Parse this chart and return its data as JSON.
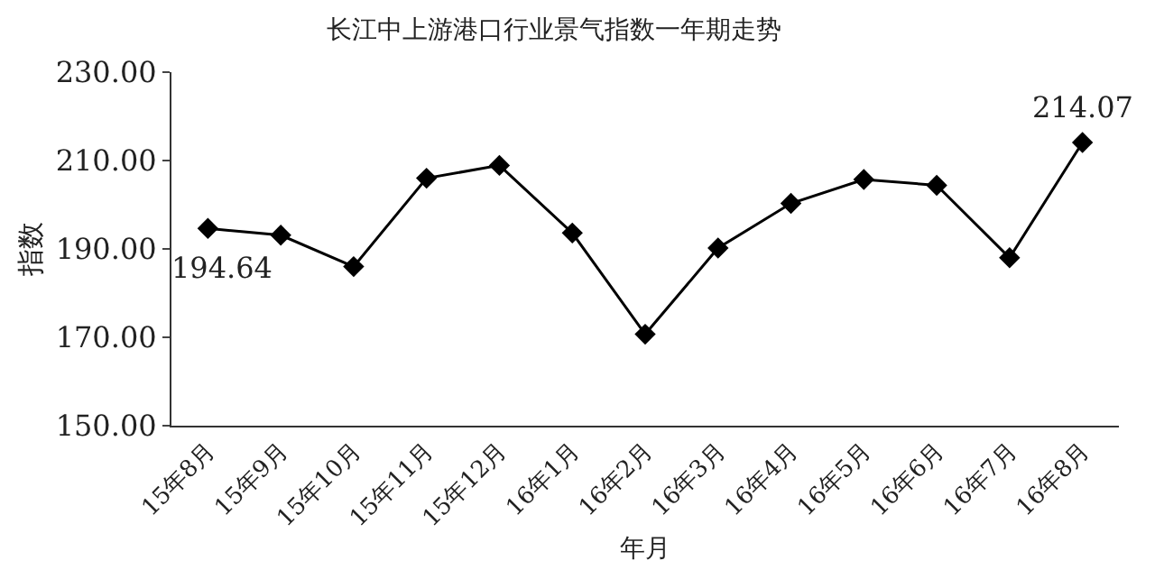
{
  "chart_data": {
    "type": "line",
    "title": "长江中上游港口行业景气指数一年期走势",
    "xlabel": "年月",
    "ylabel": "指数",
    "categories": [
      "15年8月",
      "15年9月",
      "15年10月",
      "15年11月",
      "15年12月",
      "16年1月",
      "16年2月",
      "16年3月",
      "16年4月",
      "16年5月",
      "16年6月",
      "16年7月",
      "16年8月"
    ],
    "series": [
      {
        "color": "#000000",
        "values": [
          194.64,
          193.1,
          186.0,
          206.0,
          208.9,
          193.6,
          170.7,
          190.2,
          200.3,
          205.7,
          204.4,
          188.0,
          214.07
        ],
        "value_labels": [
          "194.64",
          null,
          null,
          null,
          null,
          null,
          null,
          null,
          null,
          null,
          null,
          null,
          "214.07"
        ]
      }
    ],
    "ylim": [
      150,
      230
    ],
    "yticks": [
      {
        "value": 150,
        "label": "150.00"
      },
      {
        "value": 170,
        "label": "170.00"
      },
      {
        "value": 190,
        "label": "190.00"
      },
      {
        "value": 210,
        "label": "210.00"
      },
      {
        "value": 230,
        "label": "230.00"
      }
    ],
    "marker": "diamond",
    "line_style": "solid"
  }
}
